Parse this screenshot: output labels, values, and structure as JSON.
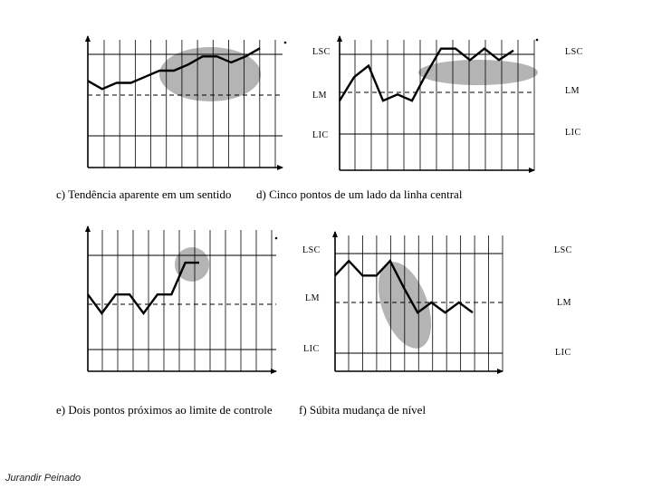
{
  "captions": {
    "c": "c) Tendência aparente em um sentido",
    "d": "d) Cinco pontos de um lado da linha central",
    "e": "e) Dois pontos próximos ao limite de controle",
    "f": "f) Súbita mudança de nível"
  },
  "author": "Jurandir Peinado",
  "line_labels": {
    "upper": "LSC",
    "center": "LM",
    "lower": "LIC"
  },
  "colors": {
    "highlight": "#b4b4b4",
    "line": "#000000",
    "grid": "#000000"
  },
  "panels": [
    {
      "id": "c",
      "series": [
        0.35,
        0.15,
        0.3,
        0.3,
        0.45,
        0.6,
        0.6,
        0.75,
        0.95,
        0.95,
        0.8,
        0.95,
        1.15
      ]
    },
    {
      "id": "d",
      "series": [
        -0.2,
        0.4,
        0.7,
        -0.2,
        -0.05,
        -0.2,
        0.5,
        1.15,
        1.15,
        0.85,
        1.15,
        0.85,
        1.1
      ]
    },
    {
      "id": "e",
      "series": [
        0.2,
        -0.2,
        0.2,
        0.2,
        -0.2,
        0.2,
        0.2,
        0.85,
        0.85
      ]
    },
    {
      "id": "f",
      "series": [
        0.55,
        0.85,
        0.55,
        0.55,
        0.85,
        0.3,
        -0.2,
        0.0,
        -0.2,
        0.0,
        -0.2
      ]
    }
  ]
}
